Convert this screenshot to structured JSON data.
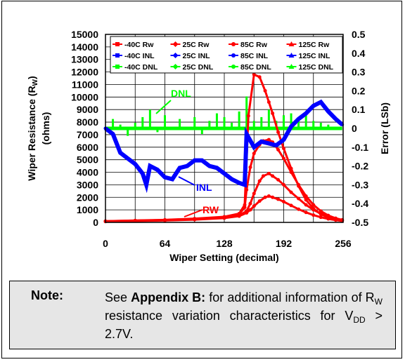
{
  "chart_data": {
    "type": "line",
    "xlabel": "Wiper Setting (decimal)",
    "ylabel_left": "Wiper Resistance (R",
    "ylabel_left_sub": "W",
    "ylabel_left_close": ")",
    "ylabel_left_units": "(ohms)",
    "ylabel_right": "Error (LSb)",
    "xlim": [
      0,
      256
    ],
    "ylim_left": [
      0,
      15000
    ],
    "ylim_right": [
      -0.5,
      0.5
    ],
    "x_ticks": [
      "0",
      "64",
      "128",
      "192",
      "256"
    ],
    "y_left_ticks": [
      "0",
      "1000",
      "2000",
      "3000",
      "4000",
      "5000",
      "6000",
      "7000",
      "8000",
      "9000",
      "10000",
      "11000",
      "12000",
      "13000",
      "14000",
      "15000"
    ],
    "y_right_ticks": [
      "-0.5",
      "-0.4",
      "-0.3",
      "-0.2",
      "-0.1",
      "0",
      "0.1",
      "0.2",
      "0.3",
      "0.4",
      "0.5"
    ],
    "grid": true,
    "legend_position": "top",
    "legend": [
      {
        "label": "-40C Rw",
        "color": "#ff0000",
        "marker": "square"
      },
      {
        "label": "25C Rw",
        "color": "#ff0000",
        "marker": "diamond"
      },
      {
        "label": "85C Rw",
        "color": "#ff0000",
        "marker": "circle"
      },
      {
        "label": "125C Rw",
        "color": "#ff0000",
        "marker": "triangle"
      },
      {
        "label": "-40C INL",
        "color": "#0000ff",
        "marker": "square"
      },
      {
        "label": "25C INL",
        "color": "#0000ff",
        "marker": "diamond"
      },
      {
        "label": "85C INL",
        "color": "#0000ff",
        "marker": "circle"
      },
      {
        "label": "125C INL",
        "color": "#0000ff",
        "marker": "triangle"
      },
      {
        "label": "-40C DNL",
        "color": "#00ff00",
        "marker": "square"
      },
      {
        "label": "25C DNL",
        "color": "#00ff00",
        "marker": "diamond"
      },
      {
        "label": "85C DNL",
        "color": "#00ff00",
        "marker": "circle"
      },
      {
        "label": "125C DNL",
        "color": "#00ff00",
        "marker": "triangle"
      }
    ],
    "annotations": [
      {
        "text": "DNL",
        "color": "#00ff00"
      },
      {
        "text": "INL",
        "color": "#0000ff"
      },
      {
        "text": "RW",
        "color": "#ff0000"
      }
    ],
    "series": [
      {
        "name": "-40C Rw",
        "axis": "left",
        "color": "#ff0000",
        "x": [
          0,
          32,
          64,
          96,
          128,
          144,
          150,
          154,
          160,
          166,
          172,
          176,
          180,
          186,
          192,
          200,
          208,
          216,
          224,
          232,
          240,
          248,
          255
        ],
        "y": [
          100,
          150,
          200,
          300,
          450,
          700,
          1400,
          8500,
          11800,
          11600,
          10500,
          9600,
          8700,
          7200,
          5900,
          4300,
          2900,
          1800,
          1100,
          650,
          400,
          250,
          150
        ]
      },
      {
        "name": "25C Rw",
        "axis": "left",
        "color": "#ff0000",
        "x": [
          0,
          32,
          64,
          96,
          128,
          144,
          150,
          152,
          156,
          160,
          166,
          170,
          176,
          180,
          186,
          192,
          200,
          208,
          216,
          224,
          232,
          240,
          248,
          255
        ],
        "y": [
          100,
          140,
          190,
          280,
          420,
          650,
          1200,
          2600,
          4400,
          5500,
          6200,
          6500,
          6600,
          6400,
          5800,
          5100,
          4000,
          3000,
          2100,
          1400,
          900,
          550,
          330,
          200
        ]
      },
      {
        "name": "85C Rw",
        "axis": "left",
        "color": "#ff0000",
        "x": [
          0,
          32,
          64,
          96,
          128,
          144,
          152,
          156,
          160,
          166,
          170,
          176,
          180,
          186,
          192,
          200,
          208,
          216,
          224,
          232,
          240,
          248,
          255
        ],
        "y": [
          80,
          120,
          170,
          250,
          380,
          560,
          900,
          1500,
          2300,
          3300,
          3700,
          3900,
          3700,
          3400,
          3000,
          2400,
          1900,
          1400,
          1000,
          700,
          450,
          280,
          180
        ]
      },
      {
        "name": "125C Rw",
        "axis": "left",
        "color": "#ff0000",
        "x": [
          0,
          32,
          64,
          96,
          128,
          144,
          152,
          156,
          160,
          166,
          172,
          176,
          180,
          186,
          192,
          200,
          208,
          216,
          224,
          232,
          240,
          248,
          255
        ],
        "y": [
          70,
          110,
          150,
          220,
          340,
          500,
          760,
          1000,
          1300,
          1700,
          2000,
          2100,
          2000,
          1850,
          1650,
          1350,
          1050,
          800,
          580,
          410,
          280,
          180,
          120
        ]
      },
      {
        "name": "-40C INL",
        "axis": "right",
        "color": "#0000ff",
        "x": [
          0,
          8,
          16,
          24,
          32,
          40,
          44,
          48,
          56,
          64,
          72,
          80,
          88,
          96,
          104,
          112,
          120,
          128,
          136,
          144,
          150,
          152,
          160,
          168,
          176,
          184,
          192,
          200,
          208,
          216,
          224,
          232,
          240,
          248,
          255
        ],
        "y": [
          0,
          -0.03,
          -0.13,
          -0.16,
          -0.19,
          -0.24,
          -0.3,
          -0.2,
          -0.22,
          -0.26,
          -0.27,
          -0.21,
          -0.2,
          -0.17,
          -0.17,
          -0.2,
          -0.21,
          -0.24,
          -0.27,
          -0.29,
          -0.3,
          -0.03,
          -0.1,
          -0.07,
          -0.08,
          -0.09,
          -0.06,
          0.01,
          0.05,
          0.08,
          0.12,
          0.14,
          0.09,
          0.05,
          0.02
        ]
      }
    ]
  },
  "note": {
    "label": "Note:",
    "bold_ref": "Appendix B:",
    "text_pre": "See ",
    "text_mid": " for additional information of R",
    "text_sub": "W",
    "text_post_1": " resistance variation characteristics for V",
    "text_sub2": "DD",
    "text_post_2": " > 2.7V."
  }
}
